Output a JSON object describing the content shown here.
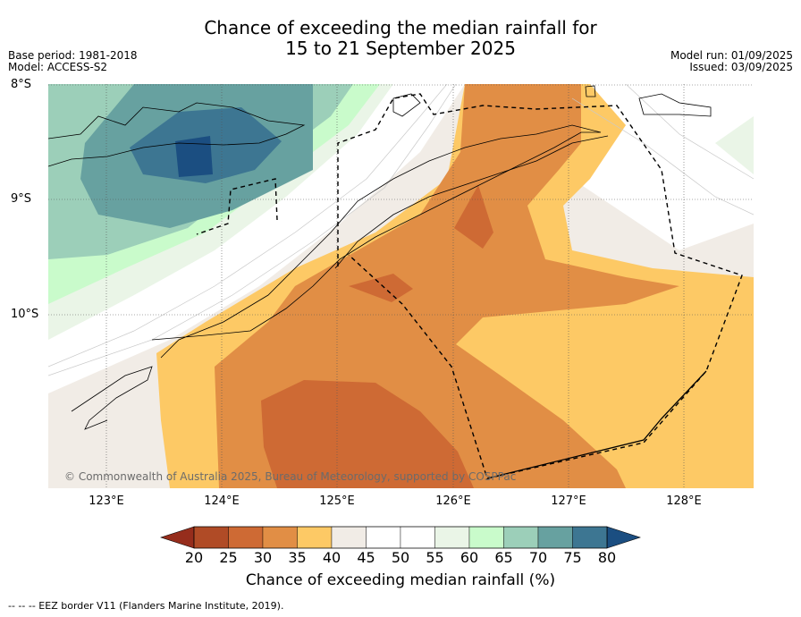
{
  "title_line1": "Chance of exceeding the median rainfall for",
  "title_line2": "15 to 21 September 2025",
  "base_period": "Base period: 1981-2018",
  "model": "Model: ACCESS-S2",
  "model_run": "Model run: 01/09/2025",
  "issued": "Issued: 03/09/2025",
  "lat_labels": [
    "8°S",
    "9°S",
    "10°S"
  ],
  "lon_labels": [
    "123°E",
    "124°E",
    "125°E",
    "126°E",
    "127°E",
    "128°E"
  ],
  "copyright": "© Commonwealth of Australia 2025, Bureau of Meteorology, supported by COSPPac",
  "colorbar": {
    "ticks": [
      "20",
      "25",
      "30",
      "35",
      "40",
      "45",
      "50",
      "55",
      "60",
      "65",
      "70",
      "75",
      "80"
    ],
    "colors": [
      "#b04b26",
      "#ce6a34",
      "#e18e45",
      "#fdc965",
      "#f1ece6",
      "#ffffff",
      "#ffffff",
      "#eaf5e7",
      "#c9fbcb",
      "#9ccfb9",
      "#67a1a0",
      "#3d7692"
    ],
    "extend_low_color": "#962d1c",
    "extend_high_color": "#1b4e81",
    "label": "Chance of exceeding median rainfall (%)"
  },
  "footnote": "--  --  -- EEZ border V11 (Flanders Marine Institute, 2019)."
}
